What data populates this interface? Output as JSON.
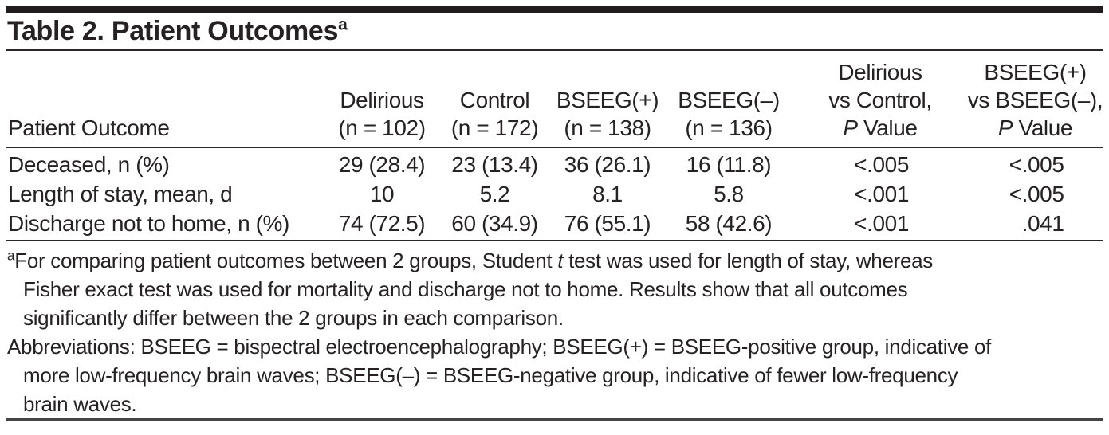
{
  "title": {
    "text": "Table 2. Patient Outcomes",
    "superscript": "a"
  },
  "table": {
    "headers": [
      {
        "id": "patient-outcome",
        "align": "left",
        "lines": [
          [
            {
              "t": "Patient Outcome"
            }
          ]
        ]
      },
      {
        "id": "delirious-group",
        "lines": [
          [
            {
              "t": "Delirious"
            }
          ],
          [
            {
              "t": "(n = 102)"
            }
          ]
        ]
      },
      {
        "id": "control-group",
        "lines": [
          [
            {
              "t": "Control"
            }
          ],
          [
            {
              "t": "(n = 172)"
            }
          ]
        ]
      },
      {
        "id": "bseeg-positive-group",
        "lines": [
          [
            {
              "t": "BSEEG(+)"
            }
          ],
          [
            {
              "t": "(n = 138)"
            }
          ]
        ]
      },
      {
        "id": "bseeg-negative-group",
        "lines": [
          [
            {
              "t": "BSEEG(–)"
            }
          ],
          [
            {
              "t": "(n = 136)"
            }
          ]
        ]
      },
      {
        "id": "delirious-vs-control-p-value",
        "pcol": true,
        "lines": [
          [
            {
              "t": "Delirious"
            }
          ],
          [
            {
              "t": "vs Control,"
            }
          ],
          [
            {
              "t": "P",
              "i": true
            },
            {
              "t": " Value"
            }
          ]
        ]
      },
      {
        "id": "bseeg-pos-vs-bseeg-neg-p-value",
        "pcol": true,
        "lines": [
          [
            {
              "t": "BSEEG(+)"
            }
          ],
          [
            {
              "t": "vs BSEEG(–),"
            }
          ],
          [
            {
              "t": "P",
              "i": true
            },
            {
              "t": " Value"
            }
          ]
        ]
      }
    ],
    "rows": [
      {
        "label": "Deceased, n (%)",
        "values": [
          "29 (28.4)",
          "23 (13.4)",
          "36 (26.1)",
          "16 (11.8)",
          "<.005",
          "<.005"
        ]
      },
      {
        "label": "Length of stay, mean, d",
        "values": [
          "10",
          "5.2",
          "8.1",
          "5.8",
          "<.001",
          "<.005"
        ]
      },
      {
        "label": "Discharge not to home, n (%)",
        "values": [
          "74 (72.5)",
          "60 (34.9)",
          "76 (55.1)",
          "58 (42.6)",
          "<.001",
          ".041"
        ]
      }
    ]
  },
  "footnotes": [
    {
      "id": "footnote-a",
      "lines": [
        {
          "indent": false,
          "segments": [
            {
              "t": "a",
              "sup": true
            },
            {
              "t": "For comparing patient outcomes between 2 groups, Student "
            },
            {
              "t": "t",
              "i": true
            },
            {
              "t": " test was used for length of stay, whereas"
            }
          ]
        },
        {
          "indent": true,
          "segments": [
            {
              "t": "Fisher exact test was used for mortality and discharge not to home. Results show that all outcomes"
            }
          ]
        },
        {
          "indent": true,
          "segments": [
            {
              "t": "significantly differ between the 2 groups in each comparison."
            }
          ]
        }
      ]
    },
    {
      "id": "footnote-abbreviations",
      "lines": [
        {
          "indent": false,
          "segments": [
            {
              "t": "Abbreviations: BSEEG = bispectral electroencephalography; BSEEG(+) = BSEEG-positive group, indicative of"
            }
          ]
        },
        {
          "indent": true,
          "segments": [
            {
              "t": "more low-frequency brain waves; BSEEG(–) = BSEEG-negative group, indicative of fewer low-frequency"
            }
          ]
        },
        {
          "indent": true,
          "segments": [
            {
              "t": "brain waves."
            }
          ]
        }
      ]
    }
  ],
  "colors": {
    "text": "#262223",
    "rule": "#2b2728",
    "top_bar": "#211d1e",
    "bottom_rule": "#474443",
    "background": "#ffffff"
  }
}
